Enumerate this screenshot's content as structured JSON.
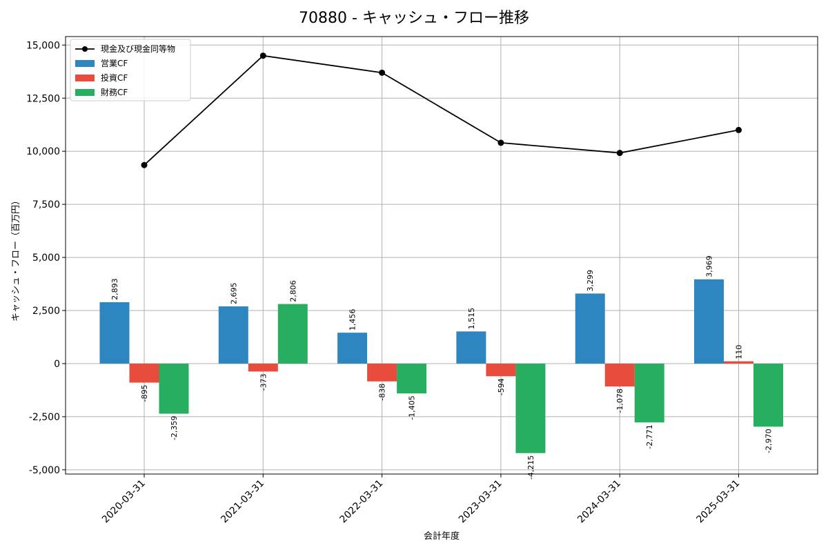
{
  "chart_data": {
    "type": "bar",
    "title": "70880 - キャッシュ・フロー推移",
    "xlabel": "会計年度",
    "ylabel": "キャッシュ・フロー（百万円）",
    "categories": [
      "2020-03-31",
      "2021-03-31",
      "2022-03-31",
      "2023-03-31",
      "2024-03-31",
      "2025-03-31"
    ],
    "ylim": [
      -5200,
      15400
    ],
    "yticks": [
      -5000,
      -2500,
      0,
      2500,
      5000,
      7500,
      10000,
      12500,
      15000
    ],
    "ytick_labels": [
      "-5,000",
      "-2,500",
      "0",
      "2,500",
      "5,000",
      "7,500",
      "10,000",
      "12,500",
      "15,000"
    ],
    "grid": true,
    "legend_position": "top-left",
    "series": [
      {
        "name": "営業CF",
        "kind": "bar",
        "color": "#2e86c1",
        "values": [
          2893,
          2695,
          1456,
          1515,
          3299,
          3969
        ],
        "labels": [
          "2,893",
          "2,695",
          "1,456",
          "1,515",
          "3,299",
          "3,969"
        ]
      },
      {
        "name": "投資CF",
        "kind": "bar",
        "color": "#e74c3c",
        "values": [
          -895,
          -373,
          -838,
          -594,
          -1078,
          110
        ],
        "labels": [
          "-895",
          "-373",
          "-838",
          "-594",
          "-1,078",
          "110"
        ]
      },
      {
        "name": "財務CF",
        "kind": "bar",
        "color": "#27ae60",
        "values": [
          -2359,
          2806,
          -1405,
          -4215,
          -2771,
          -2970
        ],
        "labels": [
          "-2,359",
          "2,806",
          "-1,405",
          "-4,215",
          "-2,771",
          "-2,970"
        ]
      },
      {
        "name": "現金及び現金同等物",
        "kind": "line",
        "color": "#000000",
        "values": [
          9350,
          14500,
          13700,
          10400,
          9920,
          11000
        ]
      }
    ]
  }
}
